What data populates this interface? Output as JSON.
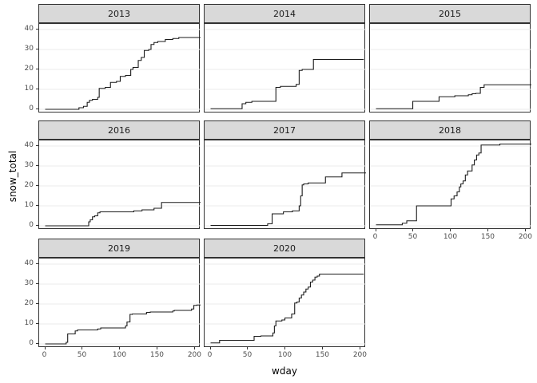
{
  "chart_data": {
    "type": "line",
    "subtype": "step-after, faceted by year (facet_wrap, 3 columns)",
    "title": "",
    "xlabel": "wday",
    "ylabel": "snow_total",
    "x_ticks": [
      0,
      50,
      100,
      150,
      200
    ],
    "y_ticks": [
      0,
      10,
      20,
      30,
      40
    ],
    "x_domain": [
      -8,
      207
    ],
    "y_domain": [
      -2,
      42.8
    ],
    "grid": "horizontal major gridlines only, light gray on white",
    "legend": "none",
    "facets": [
      {
        "label": "2013",
        "row": 0,
        "col": 0,
        "x_axis": false,
        "y_axis": true,
        "end_x": 207,
        "final_value": 36,
        "points": [
          [
            0,
            0
          ],
          [
            45,
            0.8
          ],
          [
            51,
            1.5
          ],
          [
            56,
            3.5
          ],
          [
            59,
            4.5
          ],
          [
            63,
            5
          ],
          [
            70,
            6
          ],
          [
            72,
            10.5
          ],
          [
            80,
            11
          ],
          [
            87,
            13.5
          ],
          [
            95,
            14
          ],
          [
            100,
            16.5
          ],
          [
            107,
            17
          ],
          [
            114,
            20
          ],
          [
            117,
            21
          ],
          [
            124,
            24.5
          ],
          [
            128,
            26
          ],
          [
            132,
            29.5
          ],
          [
            138,
            30
          ],
          [
            141,
            32.5
          ],
          [
            145,
            33.5
          ],
          [
            150,
            34
          ],
          [
            160,
            35
          ],
          [
            170,
            35.5
          ],
          [
            178,
            36
          ]
        ]
      },
      {
        "label": "2014",
        "row": 0,
        "col": 1,
        "x_axis": false,
        "y_axis": false,
        "end_x": 204,
        "final_value": 25,
        "points": [
          [
            0,
            0.3
          ],
          [
            42,
            2.8
          ],
          [
            47,
            3.5
          ],
          [
            55,
            4
          ],
          [
            87,
            11
          ],
          [
            93,
            11.5
          ],
          [
            114,
            12.5
          ],
          [
            118,
            19.5
          ],
          [
            122,
            20
          ],
          [
            137,
            25
          ]
        ]
      },
      {
        "label": "2015",
        "row": 0,
        "col": 2,
        "x_axis": false,
        "y_axis": false,
        "end_x": 207,
        "final_value": 12.3,
        "points": [
          [
            0,
            0.3
          ],
          [
            49,
            4
          ],
          [
            84,
            6.3
          ],
          [
            105,
            6.8
          ],
          [
            123,
            7.3
          ],
          [
            128,
            7.8
          ],
          [
            133,
            8
          ],
          [
            139,
            11
          ],
          [
            144,
            12.3
          ]
        ]
      },
      {
        "label": "2016",
        "row": 1,
        "col": 0,
        "x_axis": false,
        "y_axis": true,
        "end_x": 207,
        "final_value": 11.7,
        "points": [
          [
            0,
            0
          ],
          [
            58,
            2
          ],
          [
            60,
            3
          ],
          [
            63,
            4.5
          ],
          [
            66,
            5
          ],
          [
            70,
            6.5
          ],
          [
            73,
            7
          ],
          [
            118,
            7.5
          ],
          [
            129,
            8
          ],
          [
            145,
            8.8
          ],
          [
            155,
            11.7
          ]
        ]
      },
      {
        "label": "2017",
        "row": 1,
        "col": 1,
        "x_axis": false,
        "y_axis": false,
        "end_x": 207,
        "final_value": 26.5,
        "points": [
          [
            0,
            0.2
          ],
          [
            76,
            1
          ],
          [
            82,
            6
          ],
          [
            97,
            7
          ],
          [
            109,
            7.5
          ],
          [
            118,
            10
          ],
          [
            120,
            15
          ],
          [
            122,
            20.5
          ],
          [
            124,
            21
          ],
          [
            130,
            21.5
          ],
          [
            153,
            24.5
          ],
          [
            175,
            26.5
          ]
        ]
      },
      {
        "label": "2018",
        "row": 1,
        "col": 2,
        "x_axis": true,
        "y_axis": false,
        "end_x": 207,
        "final_value": 41,
        "points": [
          [
            0,
            0.5
          ],
          [
            35,
            1.3
          ],
          [
            41,
            2.5
          ],
          [
            54,
            10
          ],
          [
            100,
            13.5
          ],
          [
            104,
            15
          ],
          [
            108,
            17
          ],
          [
            111,
            19.5
          ],
          [
            113,
            21
          ],
          [
            116,
            22.5
          ],
          [
            119,
            25.5
          ],
          [
            122,
            27.5
          ],
          [
            128,
            30.5
          ],
          [
            131,
            33
          ],
          [
            134,
            35.5
          ],
          [
            137,
            36.5
          ],
          [
            140,
            40.5
          ],
          [
            165,
            41
          ]
        ]
      },
      {
        "label": "2019",
        "row": 2,
        "col": 0,
        "x_axis": true,
        "y_axis": true,
        "end_x": 207,
        "final_value": 19.5,
        "points": [
          [
            0,
            0
          ],
          [
            28,
            0.8
          ],
          [
            30,
            5
          ],
          [
            40,
            6.5
          ],
          [
            43,
            7
          ],
          [
            70,
            7.5
          ],
          [
            74,
            8
          ],
          [
            107,
            9
          ],
          [
            109,
            11
          ],
          [
            113,
            14.8
          ],
          [
            116,
            15
          ],
          [
            135,
            15.8
          ],
          [
            140,
            16
          ],
          [
            170,
            16.5
          ],
          [
            172,
            16.8
          ],
          [
            195,
            17.5
          ],
          [
            198,
            19.3
          ],
          [
            202,
            19.5
          ]
        ]
      },
      {
        "label": "2020",
        "row": 2,
        "col": 1,
        "x_axis": true,
        "y_axis": false,
        "end_x": 204,
        "final_value": 35,
        "points": [
          [
            0,
            0.5
          ],
          [
            12,
            1.8
          ],
          [
            58,
            3.8
          ],
          [
            67,
            4
          ],
          [
            83,
            5.5
          ],
          [
            85,
            9
          ],
          [
            87,
            11.5
          ],
          [
            95,
            12
          ],
          [
            99,
            13
          ],
          [
            108,
            15
          ],
          [
            112,
            20.5
          ],
          [
            115,
            21
          ],
          [
            118,
            23
          ],
          [
            121,
            24.5
          ],
          [
            124,
            26
          ],
          [
            127,
            27.5
          ],
          [
            130,
            28.5
          ],
          [
            133,
            31
          ],
          [
            136,
            32
          ],
          [
            139,
            33.5
          ],
          [
            142,
            34
          ],
          [
            145,
            35
          ]
        ]
      }
    ]
  },
  "style": {
    "strip_fill": "#D9D9D9",
    "strip_text_color": "#1A1A1A",
    "panel_border": "#333333",
    "grid_color": "#EBEBEB",
    "line_color": "#1A1A1A",
    "axis_text_color": "#4D4D4D",
    "axis_title_color": "#000000",
    "background": "#FFFFFF"
  }
}
